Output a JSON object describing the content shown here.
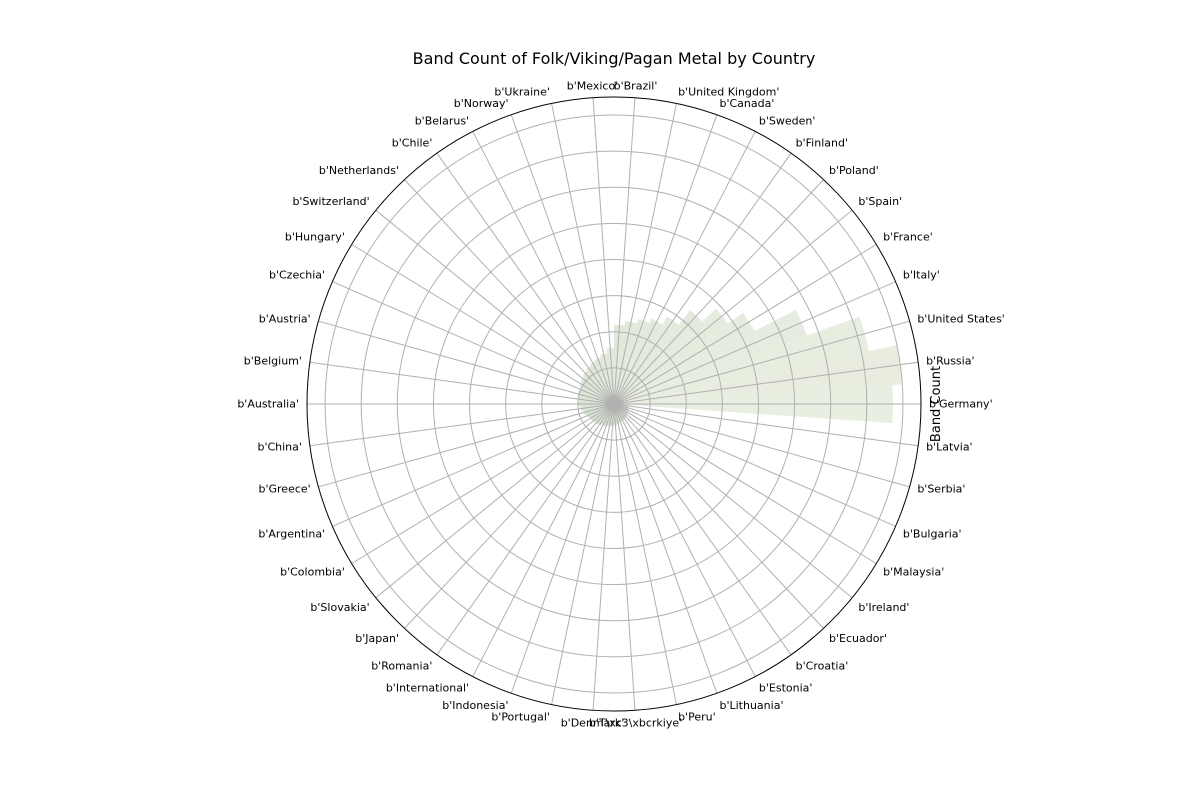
{
  "chart_data": {
    "type": "bar",
    "projection": "polar",
    "title": "Band Count of Folk/Viking/Pagan Metal by Country",
    "ylabel": "Band Count",
    "grid": true,
    "ylim": [
      0,
      330
    ],
    "categories": [
      "b'Germany'",
      "b'Russia'",
      "b'United States'",
      "b'Italy'",
      "b'France'",
      "b'Spain'",
      "b'Poland'",
      "b'Finland'",
      "b'Sweden'",
      "b'Canada'",
      "b'United Kingdom'",
      "b'Brazil'",
      "b'Mexico'",
      "b'Ukraine'",
      "b'Norway'",
      "b'Belarus'",
      "b'Chile'",
      "b'Netherlands'",
      "b'Switzerland'",
      "b'Hungary'",
      "b'Czechia'",
      "b'Austria'",
      "b'Belgium'",
      "b'Australia'",
      "b'China'",
      "b'Greece'",
      "b'Argentina'",
      "b'Colombia'",
      "b'Slovakia'",
      "b'Japan'",
      "b'Romania'",
      "b'International'",
      "b'Indonesia'",
      "b'Portugal'",
      "b'Denmark'",
      "b'T\\xc3\\xbcrkiye'",
      "b'Peru'",
      "b'Lithuania'",
      "b'Estonia'",
      "b'Croatia'",
      "b'Ecuador'",
      "b'Ireland'",
      "b'Malaysia'",
      "b'Bulgaria'",
      "b'Serbia'",
      "b'Latvia'"
    ],
    "values": [
      300,
      310,
      280,
      220,
      170,
      150,
      130,
      110,
      100,
      95,
      90,
      85,
      60,
      55,
      52,
      50,
      48,
      46,
      44,
      42,
      40,
      40,
      38,
      38,
      36,
      34,
      32,
      30,
      29,
      28,
      27,
      26,
      25,
      24,
      24,
      23,
      22,
      21,
      20,
      20,
      19,
      18,
      17,
      17,
      16,
      15
    ],
    "colors": [
      "#d9e2cc",
      "#a8c3a2"
    ]
  }
}
